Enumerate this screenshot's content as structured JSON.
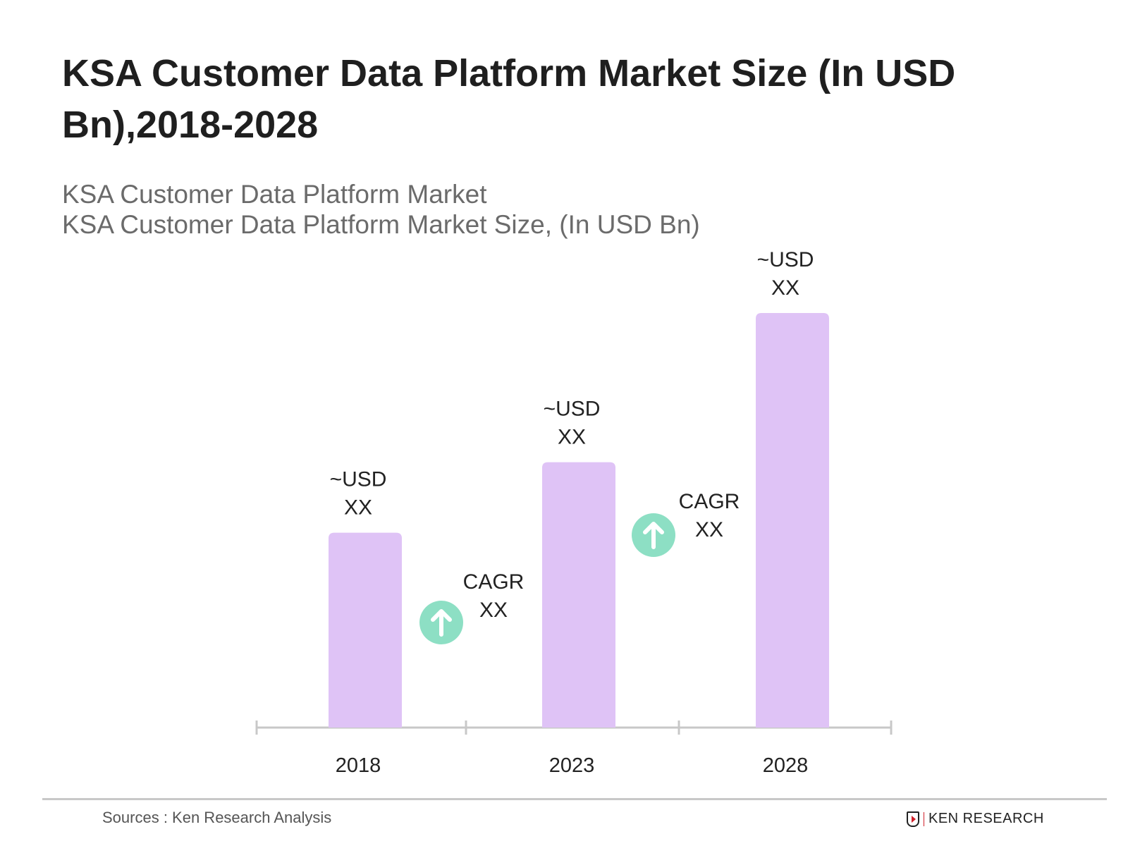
{
  "title": "KSA Customer Data Platform Market Size (In USD Bn),2018-2028",
  "subtitle_lines": [
    "KSA Customer Data Platform Market",
    "KSA Customer Data Platform Market Size, (In USD Bn)"
  ],
  "chart_data": {
    "type": "bar",
    "title": "KSA Customer Data Platform Market Size (In USD Bn),2018-2028",
    "categories": [
      "2018",
      "2023",
      "2028"
    ],
    "relative_values": [
      0.47,
      0.64,
      1.0
    ],
    "data_labels": [
      [
        "~USD",
        "XX"
      ],
      [
        "~USD",
        "XX"
      ],
      [
        "~USD",
        "XX"
      ]
    ],
    "annotations": [
      {
        "between": [
          "2018",
          "2023"
        ],
        "lines": [
          "CAGR",
          "XX"
        ],
        "icon": "arrow-up-circle-icon"
      },
      {
        "between": [
          "2023",
          "2028"
        ],
        "lines": [
          "CAGR",
          "XX"
        ],
        "icon": "arrow-up-circle-icon"
      }
    ],
    "grid": false,
    "y_axis_shown": false,
    "colors": {
      "bar": "#dfc3f6",
      "cagr_icon": "#8ddfc4",
      "axis": "#c8c8c8"
    }
  },
  "footer": {
    "sources": "Sources : Ken Research Analysis",
    "logo_text": "KEN RESEARCH"
  }
}
